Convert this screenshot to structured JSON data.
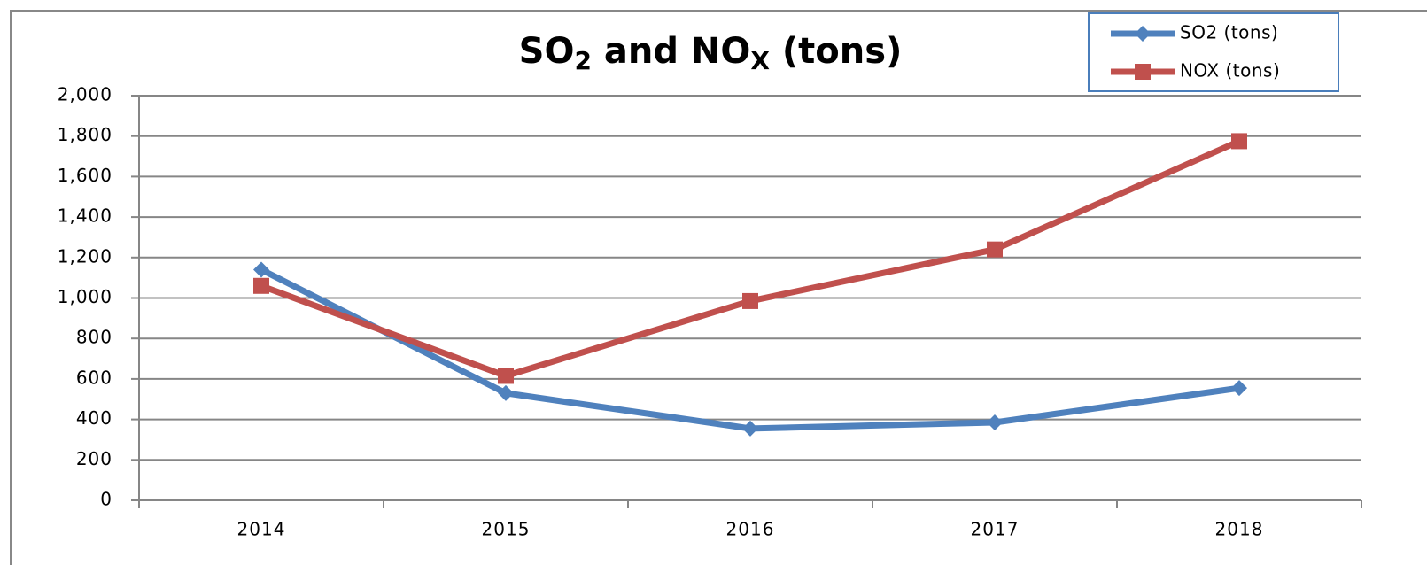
{
  "chart_data": {
    "type": "line",
    "title": [
      {
        "text": "SO"
      },
      {
        "text": "2",
        "subscript": true
      },
      {
        "text": " and NO"
      },
      {
        "text": "X",
        "subscript": true
      },
      {
        "text": " (tons)"
      }
    ],
    "categories": [
      "2014",
      "2015",
      "2016",
      "2017",
      "2018"
    ],
    "series": [
      {
        "name": "SO2 (tons)",
        "color": "#4f81bd",
        "marker": "diamond",
        "values": [
          1140,
          530,
          355,
          385,
          555
        ]
      },
      {
        "name": "NOX (tons)",
        "color": "#c0504d",
        "marker": "square",
        "values": [
          1060,
          615,
          985,
          1240,
          1775
        ]
      }
    ],
    "ylim": [
      0,
      2000
    ],
    "yticks": [
      {
        "value": 0,
        "label": "0"
      },
      {
        "value": 200,
        "label": "200"
      },
      {
        "value": 400,
        "label": "400"
      },
      {
        "value": 600,
        "label": "600"
      },
      {
        "value": 800,
        "label": "800"
      },
      {
        "value": 1000,
        "label": "1,000"
      },
      {
        "value": 1200,
        "label": "1,200"
      },
      {
        "value": 1400,
        "label": "1,400"
      },
      {
        "value": 1600,
        "label": "1,600"
      },
      {
        "value": 1800,
        "label": "1,800"
      },
      {
        "value": 2000,
        "label": "2,000"
      }
    ],
    "grid": true,
    "legend": "top-right"
  }
}
